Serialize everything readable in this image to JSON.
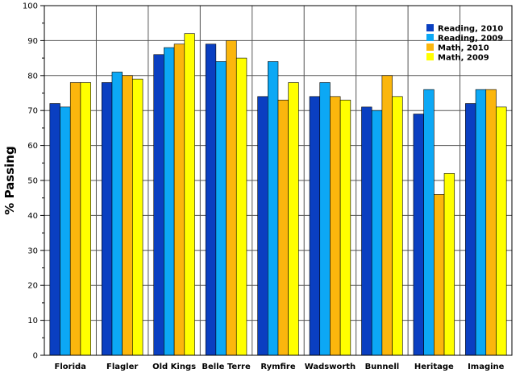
{
  "chart_data": {
    "type": "bar",
    "title": "",
    "xlabel": "",
    "ylabel": "% Passing",
    "ylim": [
      0,
      100
    ],
    "yticks": [
      0,
      10,
      20,
      30,
      40,
      50,
      60,
      70,
      80,
      90,
      100
    ],
    "grid": true,
    "legend_position": "top-right",
    "categories": [
      "Florida",
      "Flagler",
      "Old Kings",
      "Belle Terre",
      "Rymfire",
      "Wadsworth",
      "Bunnell",
      "Heritage",
      "Imagine"
    ],
    "series": [
      {
        "name": "Reading, 2010",
        "color": "#0a3fc1",
        "values": [
          72,
          78,
          86,
          89,
          74,
          74,
          71,
          69,
          72
        ]
      },
      {
        "name": "Reading, 2009",
        "color": "#0ca8f5",
        "values": [
          71,
          81,
          88,
          84,
          84,
          78,
          70,
          76,
          76
        ]
      },
      {
        "name": "Math, 2010",
        "color": "#fbb60d",
        "values": [
          78,
          80,
          89,
          90,
          73,
          74,
          80,
          46,
          76
        ]
      },
      {
        "name": "Math, 2009",
        "color": "#ffff00",
        "values": [
          78,
          79,
          92,
          85,
          78,
          73,
          74,
          52,
          71
        ]
      }
    ]
  }
}
